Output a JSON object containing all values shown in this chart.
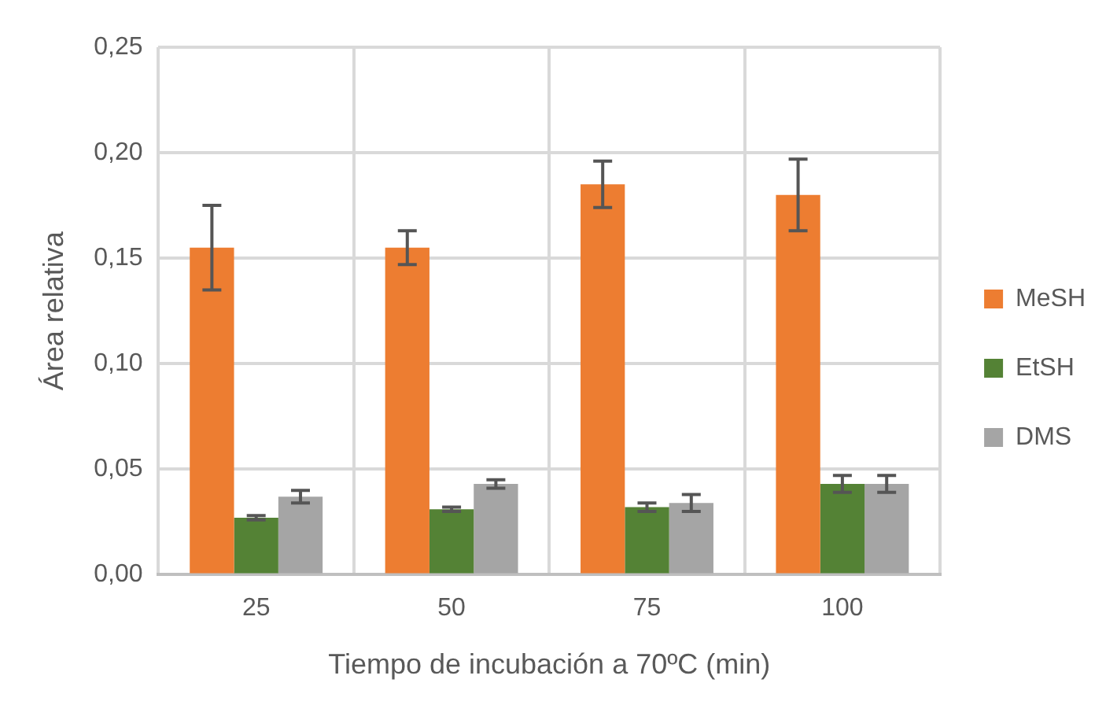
{
  "chart_data": {
    "type": "bar",
    "xlabel": "Tiempo de incubación a 70ºC (min)",
    "ylabel": "Área relativa",
    "categories": [
      "25",
      "50",
      "75",
      "100"
    ],
    "series": [
      {
        "name": "MeSH",
        "color": "#ed7d31",
        "values": [
          0.155,
          0.155,
          0.185,
          0.18
        ],
        "errors": [
          0.02,
          0.008,
          0.011,
          0.017
        ]
      },
      {
        "name": "EtSH",
        "color": "#548235",
        "values": [
          0.027,
          0.031,
          0.032,
          0.043
        ],
        "errors": [
          0.001,
          0.001,
          0.002,
          0.004
        ]
      },
      {
        "name": "DMS",
        "color": "#a5a5a5",
        "values": [
          0.037,
          0.043,
          0.034,
          0.043
        ],
        "errors": [
          0.003,
          0.002,
          0.004,
          0.004
        ]
      }
    ],
    "ylim": [
      0,
      0.25
    ],
    "yticks": [
      {
        "value": 0,
        "label": "0,00"
      },
      {
        "value": 0.05,
        "label": "0,05"
      },
      {
        "value": 0.1,
        "label": "0,10"
      },
      {
        "value": 0.15,
        "label": "0,15"
      },
      {
        "value": 0.2,
        "label": "0,20"
      },
      {
        "value": 0.25,
        "label": "0,25"
      }
    ],
    "grid": true,
    "legend": "right"
  }
}
